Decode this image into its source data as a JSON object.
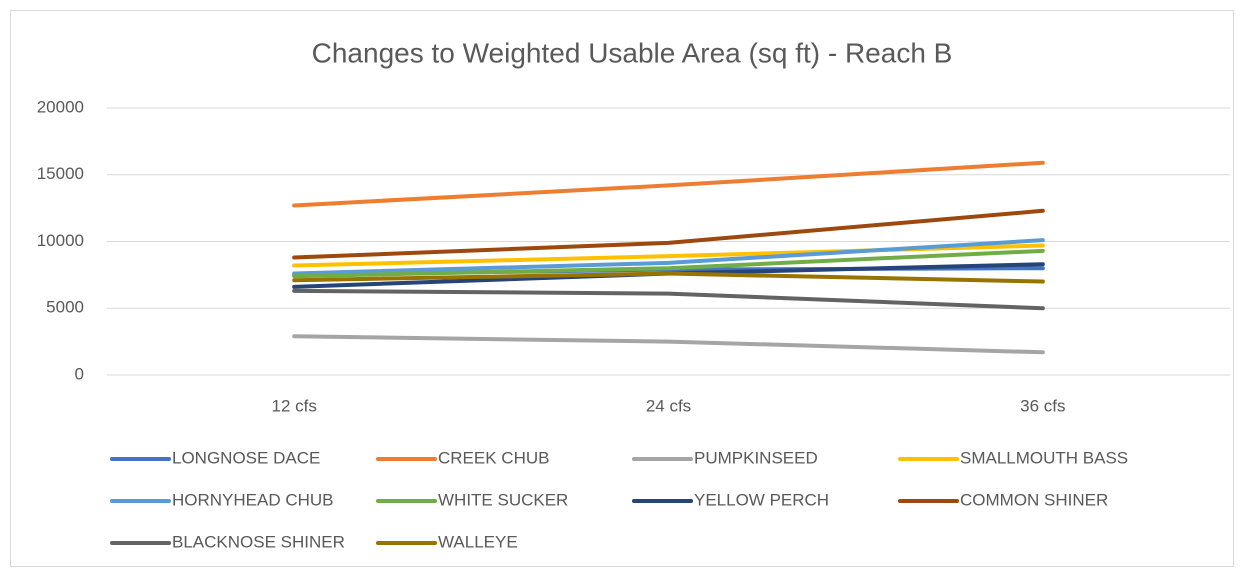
{
  "chart_data": {
    "type": "line",
    "title": "Changes to Weighted Usable Area (sq ft) - Reach B",
    "categories": [
      "12 cfs",
      "24 cfs",
      "36 cfs"
    ],
    "series": [
      {
        "name": "LONGNOSE DACE",
        "color": "#4472c4",
        "values": [
          7500,
          7900,
          8000
        ]
      },
      {
        "name": "CREEK CHUB",
        "color": "#ed7d31",
        "values": [
          12700,
          14200,
          15900
        ]
      },
      {
        "name": "PUMPKINSEED",
        "color": "#a5a5a5",
        "values": [
          2900,
          2500,
          1700
        ]
      },
      {
        "name": "SMALLMOUTH BASS",
        "color": "#ffc000",
        "values": [
          8200,
          8900,
          9700
        ]
      },
      {
        "name": "HORNYHEAD CHUB",
        "color": "#5b9bd5",
        "values": [
          7600,
          8400,
          10100
        ]
      },
      {
        "name": "WHITE SUCKER",
        "color": "#70ad47",
        "values": [
          7400,
          8000,
          9300
        ]
      },
      {
        "name": "YELLOW PERCH",
        "color": "#264478",
        "values": [
          6600,
          7600,
          8300
        ]
      },
      {
        "name": "COMMON SHINER",
        "color": "#9e480e",
        "values": [
          8800,
          9900,
          12300
        ]
      },
      {
        "name": "BLACKNOSE SHINER",
        "color": "#636363",
        "values": [
          6300,
          6100,
          5000
        ]
      },
      {
        "name": "WALLEYE",
        "color": "#997300",
        "values": [
          7100,
          7600,
          7000
        ]
      }
    ],
    "ylim": [
      0,
      20000
    ],
    "yticks": [
      0,
      5000,
      10000,
      15000,
      20000
    ],
    "grid": true,
    "legend": "bottom"
  }
}
